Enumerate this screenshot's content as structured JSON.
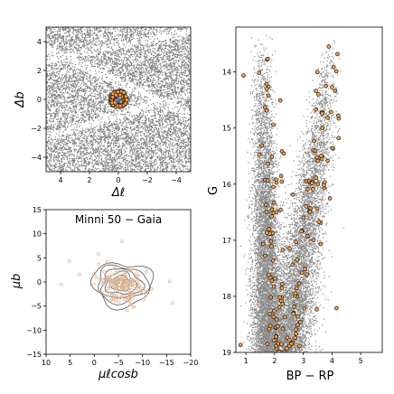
{
  "figure": {
    "panel_title": "Minni 50  −  Gaia"
  },
  "chart_data": [
    {
      "type": "scatter",
      "panel": "sky",
      "xlabel": "Δℓ",
      "ylabel": "Δb",
      "xlim": [
        5,
        -5
      ],
      "ylim": [
        -5,
        5
      ],
      "xticks": [
        "−4",
        "−2",
        "0",
        "2",
        "4"
      ],
      "xtick_values": [
        -4,
        -2,
        0,
        2,
        4
      ],
      "yticks": [
        "−4",
        "−2",
        "0",
        "2",
        "4"
      ],
      "ytick_values": [
        -4,
        -2,
        0,
        2,
        4
      ],
      "series": [
        {
          "role": "field stars",
          "color": "#7f7f7f",
          "count_approx": 9000,
          "distribution": "uniform with dark absorption lanes"
        },
        {
          "role": "cluster members",
          "color": "#f0a050",
          "edge_color": "#000000",
          "center": [
            0,
            0
          ],
          "radius": 0.6,
          "count_approx": 160
        },
        {
          "role": "cluster center",
          "color": "#2a7fd0",
          "center": [
            0,
            0
          ]
        }
      ]
    },
    {
      "type": "scatter",
      "panel": "proper_motion",
      "xlabel": "μℓcosb",
      "ylabel": "μb",
      "xlim": [
        10,
        -20
      ],
      "ylim": [
        -15,
        15
      ],
      "xticks": [
        "10",
        "5",
        "0",
        "−5",
        "−10",
        "−15",
        "−20"
      ],
      "xtick_values": [
        10,
        5,
        0,
        -5,
        -10,
        -15,
        -20
      ],
      "yticks": [
        "−15",
        "−10",
        "−5",
        "0",
        "5",
        "10",
        "15"
      ],
      "ytick_values": [
        -15,
        -10,
        -5,
        0,
        5,
        10,
        15
      ],
      "series": [
        {
          "role": "members",
          "color": "#d9b493",
          "center": [
            -5.8,
            -0.5
          ],
          "spread": [
            2.6,
            1.9
          ],
          "count_approx": 160
        },
        {
          "role": "density contours",
          "color": "#555555",
          "levels": 6
        }
      ]
    },
    {
      "type": "scatter",
      "panel": "cmd",
      "xlabel": "BP − RP",
      "ylabel": "G",
      "xlim": [
        0.65,
        5.75
      ],
      "ylim": [
        19.0,
        13.2
      ],
      "xticks": [
        "1",
        "2",
        "3",
        "4",
        "5"
      ],
      "xtick_values": [
        1,
        2,
        3,
        4,
        5
      ],
      "yticks": [
        "14",
        "15",
        "16",
        "17",
        "18",
        "19"
      ],
      "ytick_values": [
        14,
        15,
        16,
        17,
        18,
        19
      ],
      "series": [
        {
          "role": "field stars",
          "color": "#8c8c8c",
          "count_approx": 12000
        },
        {
          "role": "cluster members",
          "color": "#f0a050",
          "edge_color": "#000000",
          "count_approx": 170
        }
      ]
    }
  ]
}
